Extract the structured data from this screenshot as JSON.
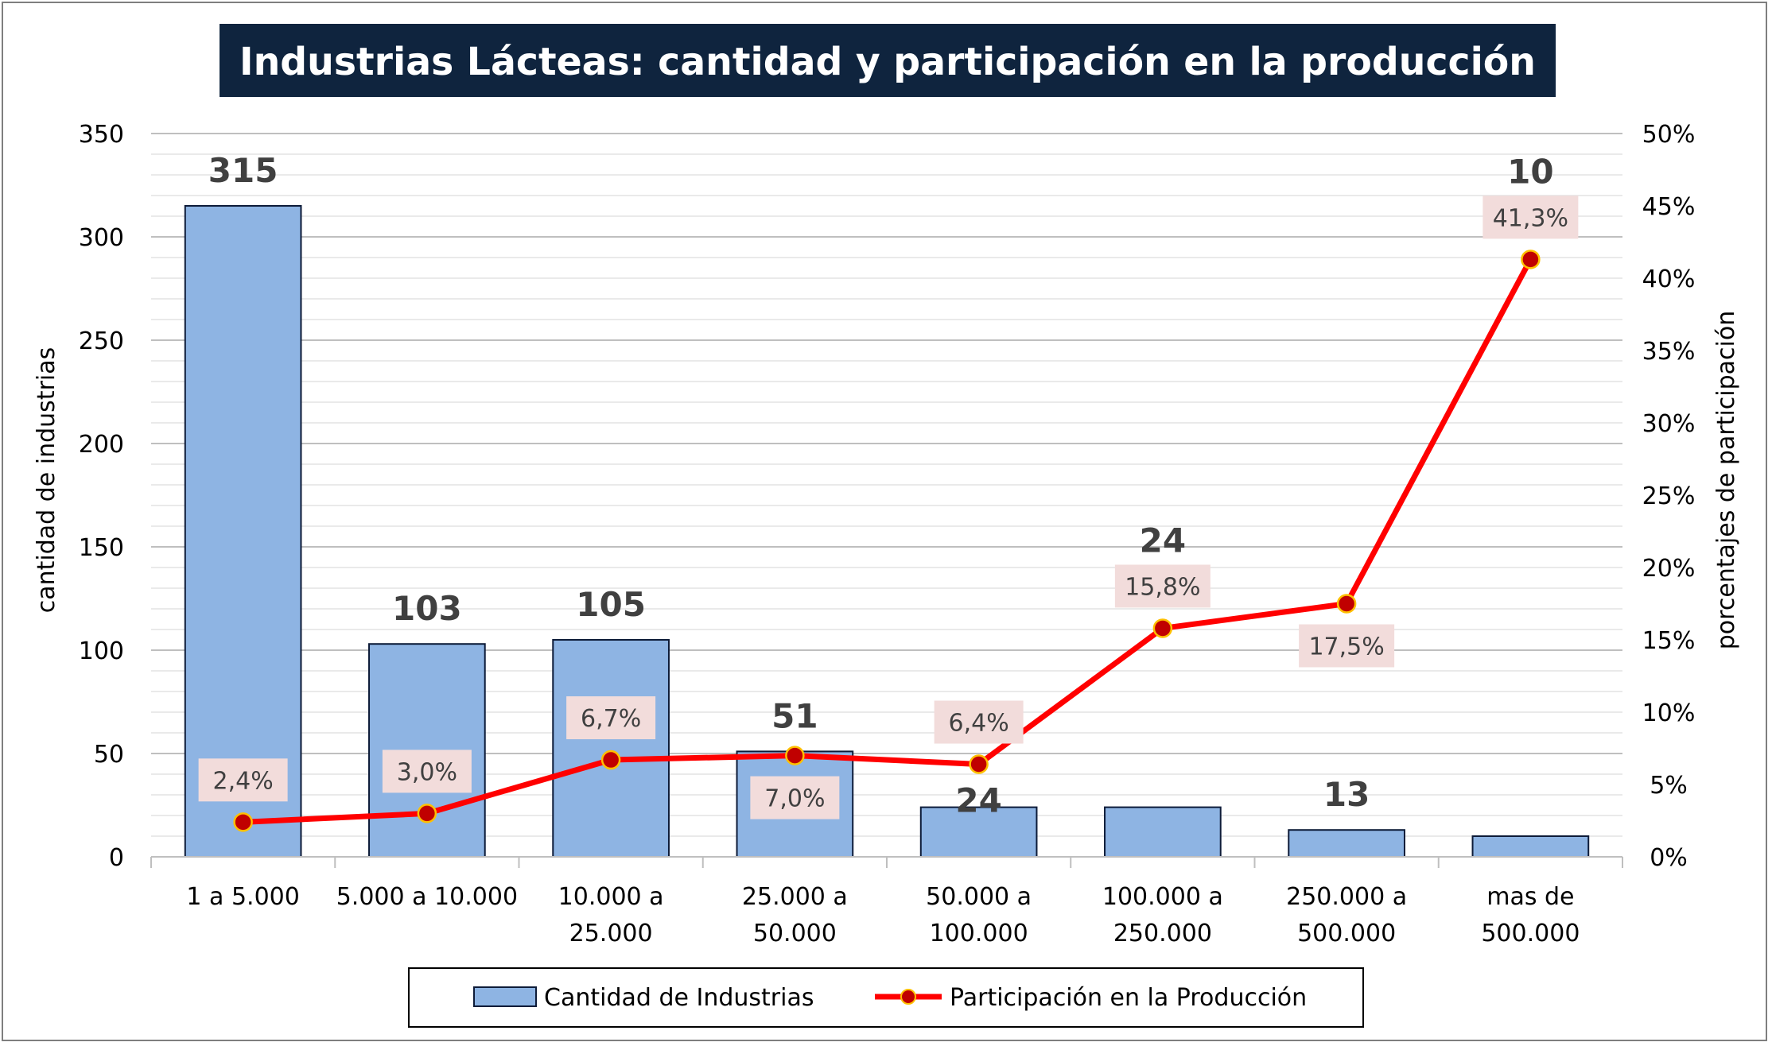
{
  "chart_data": {
    "type": "bar+line",
    "title": "Industrias Lácteas: cantidad y participación en la producción",
    "categories": [
      [
        "1 a 5.000"
      ],
      [
        "5.000 a 10.000"
      ],
      [
        "10.000 a",
        "25.000"
      ],
      [
        "25.000 a",
        "50.000"
      ],
      [
        "50.000 a",
        "100.000"
      ],
      [
        "100.000 a",
        "250.000"
      ],
      [
        "250.000 a",
        "500.000"
      ],
      [
        "mas de",
        "500.000"
      ]
    ],
    "series": [
      {
        "name": "Cantidad de Industrias",
        "kind": "bar",
        "axis": "left",
        "values": [
          315,
          103,
          105,
          51,
          24,
          24,
          13,
          10
        ],
        "labels": [
          "315",
          "103",
          "105",
          "51",
          "24",
          "24",
          "13",
          "10"
        ],
        "color": "#8eb4e3",
        "border": "#0d1b38"
      },
      {
        "name": "Participación en la Producción",
        "kind": "line",
        "axis": "right",
        "values": [
          2.4,
          3.0,
          6.7,
          7.0,
          6.4,
          15.8,
          17.5,
          41.3
        ],
        "labels": [
          "2,4%",
          "3,0%",
          "6,7%",
          "7,0%",
          "6,4%",
          "15,8%",
          "17,5%",
          "41,3%"
        ],
        "label_position": [
          "above",
          "above",
          "above",
          "below",
          "above",
          "above",
          "below",
          "above"
        ],
        "color": "#ff0000",
        "marker_fill": "#c00000",
        "marker_edge": "#ffc000",
        "label_bg": "#f2dcdb"
      }
    ],
    "ylabel": "cantidad de industrias",
    "y2label": "porcentajes de participación",
    "ylim": [
      0,
      350
    ],
    "y_ticks": [
      0,
      50,
      100,
      150,
      200,
      250,
      300,
      350
    ],
    "y2lim": [
      0,
      50
    ],
    "y2_ticks": [
      "0%",
      "5%",
      "10%",
      "15%",
      "20%",
      "25%",
      "30%",
      "35%",
      "40%",
      "45%",
      "50%"
    ],
    "grid": true,
    "legend": "bottom",
    "title_bg": "#0f243e",
    "title_color": "#ffffff"
  }
}
